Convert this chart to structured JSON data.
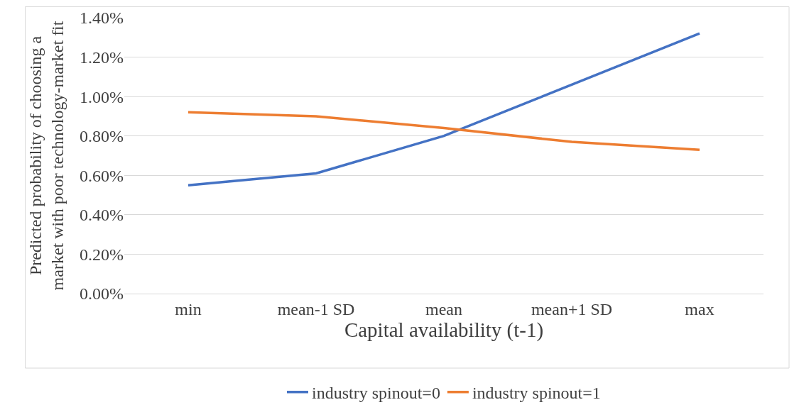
{
  "chart_data": {
    "type": "line",
    "xlabel": "Capital availability (t-1)",
    "ylabel": "Predicted probability of choosing a market with poor technology-market fit",
    "categories": [
      "min",
      "mean-1 SD",
      "mean",
      "mean+1 SD",
      "max"
    ],
    "series": [
      {
        "name": "industry spinout=0",
        "color": "#4472c4",
        "values": [
          0.55,
          0.61,
          0.8,
          1.06,
          1.32
        ]
      },
      {
        "name": "industry spinout=1",
        "color": "#ed7d31",
        "values": [
          0.92,
          0.9,
          0.84,
          0.77,
          0.73
        ]
      }
    ],
    "ylim": [
      0,
      1.4
    ],
    "yticks": [
      {
        "value": 0,
        "label": "0.00%"
      },
      {
        "value": 0.2,
        "label": "0.20%"
      },
      {
        "value": 0.4,
        "label": "0.40%"
      },
      {
        "value": 0.6,
        "label": "0.60%"
      },
      {
        "value": 0.8,
        "label": "0.80%"
      },
      {
        "value": 1.0,
        "label": "1.00%"
      },
      {
        "value": 1.2,
        "label": "1.20%"
      },
      {
        "value": 1.4,
        "label": "1.40%"
      }
    ],
    "grid": "y",
    "legend": "bottom",
    "marker": "none",
    "line_style": "solid"
  }
}
